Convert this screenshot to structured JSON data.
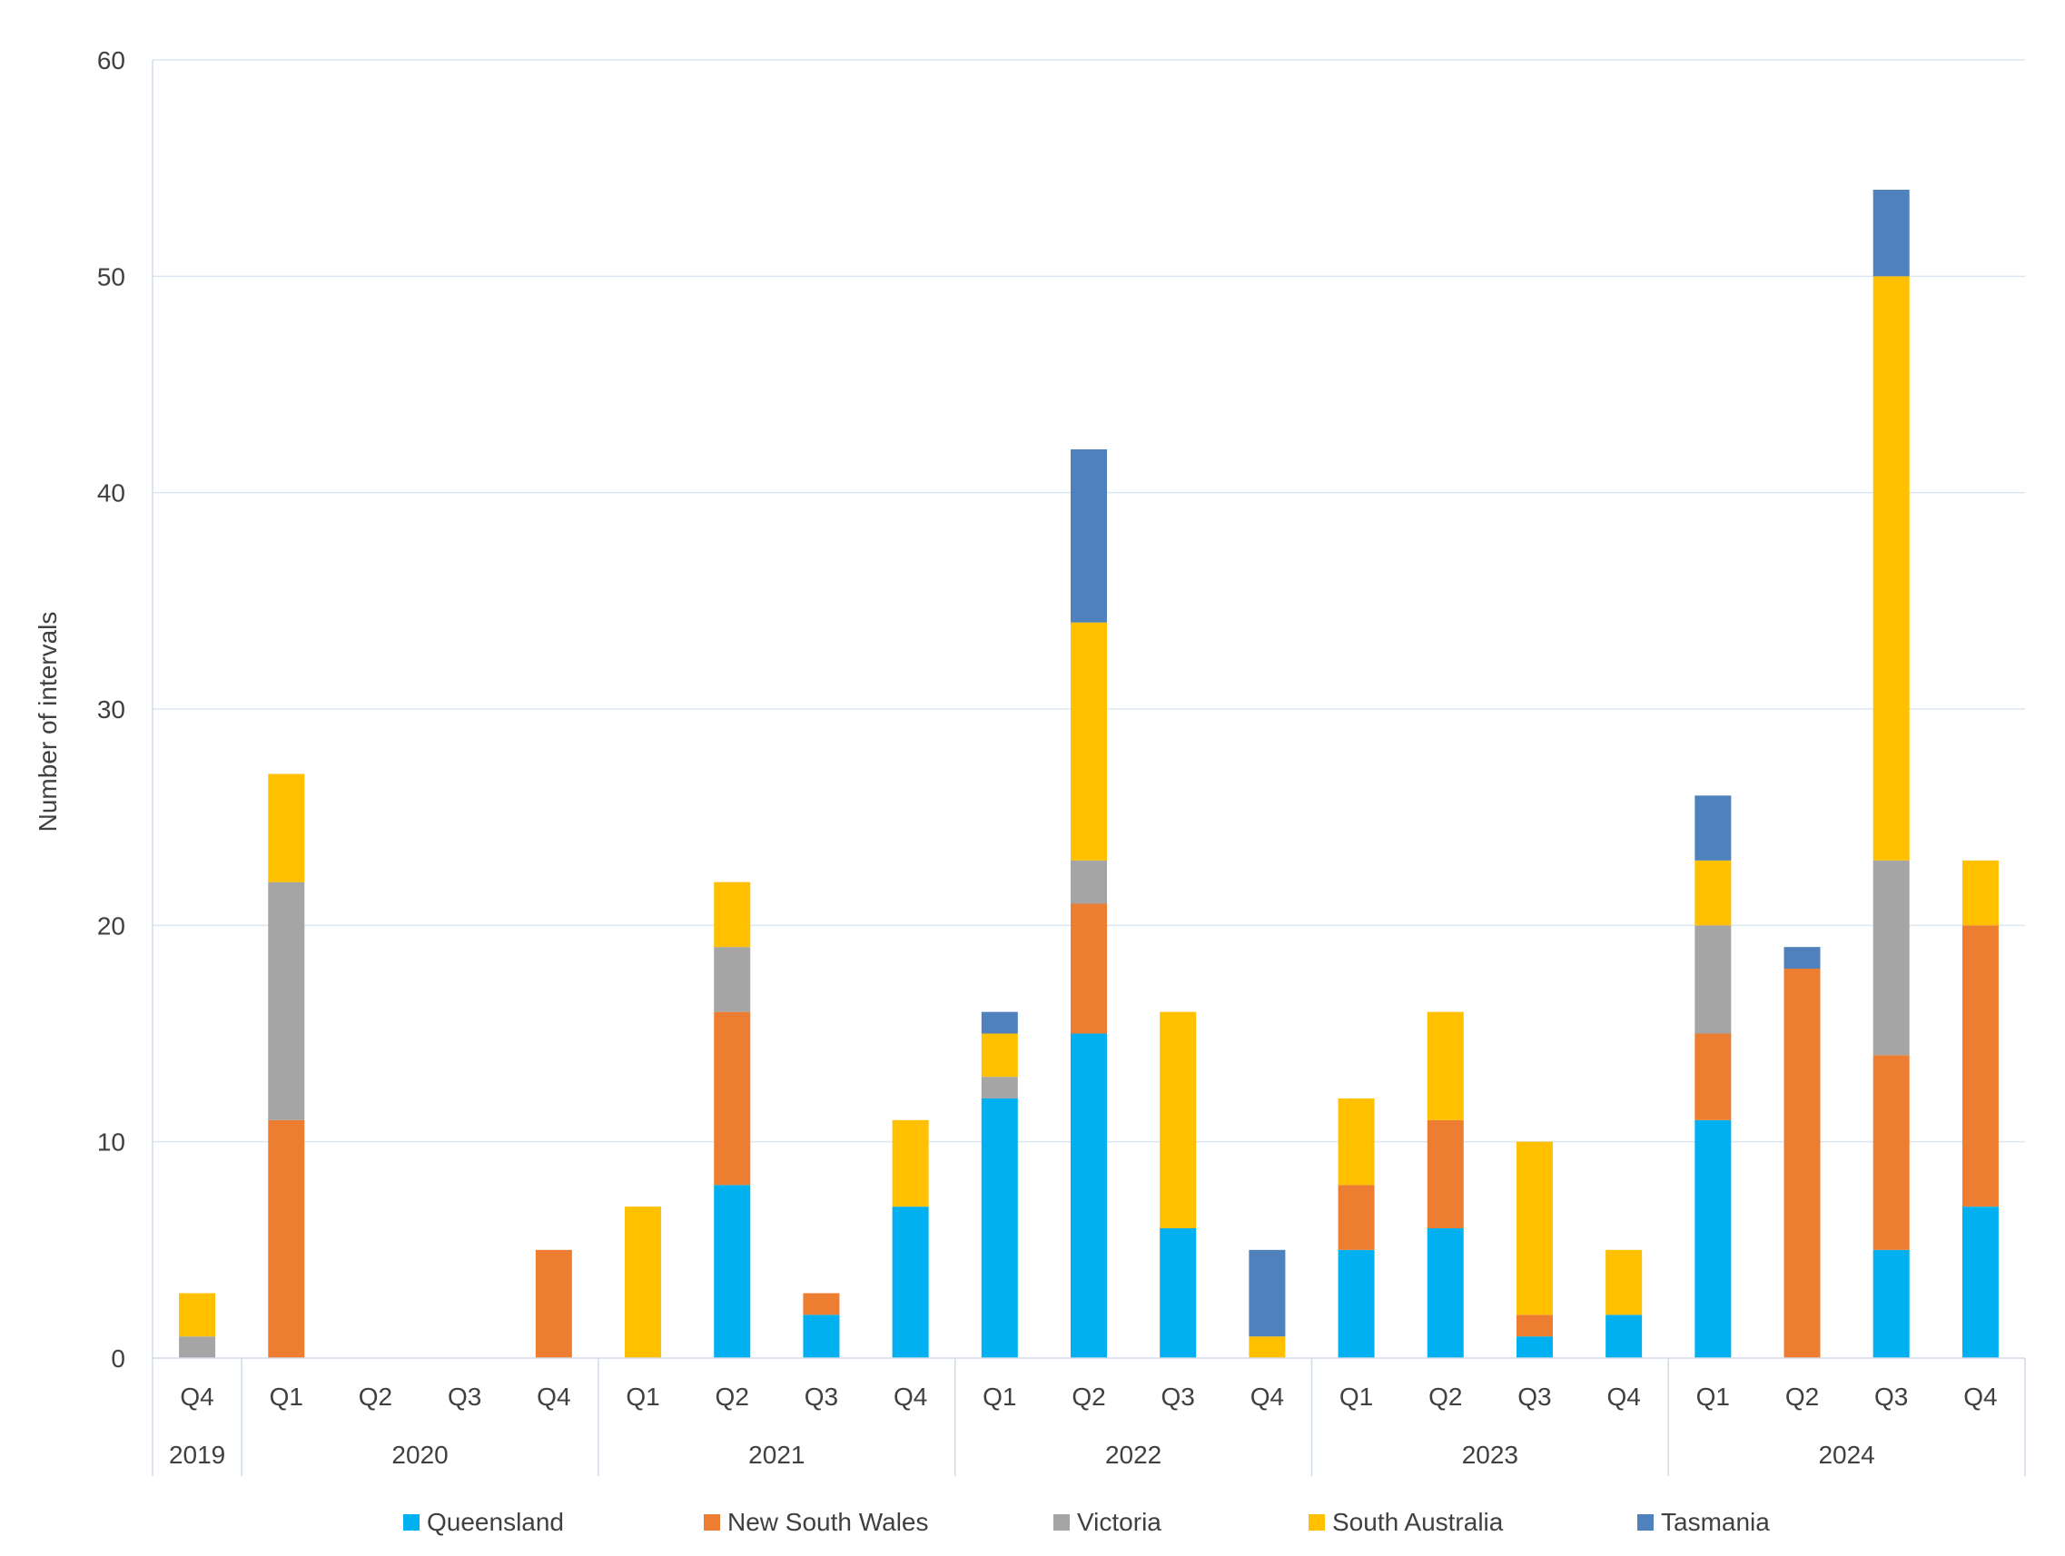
{
  "chart_data": {
    "type": "bar",
    "stacked": true,
    "title": "",
    "xlabel": "",
    "ylabel": "Number of intervals",
    "ylim": [
      0,
      60
    ],
    "yticks": [
      0,
      10,
      20,
      30,
      40,
      50,
      60
    ],
    "grid": true,
    "legend_position": "bottom",
    "categories": [
      "Q4",
      "Q1",
      "Q2",
      "Q3",
      "Q4",
      "Q1",
      "Q2",
      "Q3",
      "Q4",
      "Q1",
      "Q2",
      "Q3",
      "Q4",
      "Q1",
      "Q2",
      "Q3",
      "Q4",
      "Q1",
      "Q2",
      "Q3",
      "Q4"
    ],
    "year_groups": [
      {
        "label": "2019",
        "count": 1
      },
      {
        "label": "2020",
        "count": 4
      },
      {
        "label": "2021",
        "count": 4
      },
      {
        "label": "2022",
        "count": 4
      },
      {
        "label": "2023",
        "count": 4
      },
      {
        "label": "2024",
        "count": 4
      }
    ],
    "series": [
      {
        "name": "Queensland",
        "color": "#00B0F0",
        "values": [
          0,
          0,
          0,
          0,
          0,
          0,
          8,
          2,
          7,
          12,
          15,
          6,
          0,
          5,
          6,
          1,
          2,
          11,
          0,
          5,
          7
        ]
      },
      {
        "name": "New South Wales",
        "color": "#ED7D31",
        "values": [
          0,
          11,
          0,
          0,
          5,
          0,
          8,
          1,
          0,
          0,
          6,
          0,
          0,
          3,
          5,
          1,
          0,
          4,
          18,
          9,
          13
        ]
      },
      {
        "name": "Victoria",
        "color": "#A5A5A5",
        "values": [
          1,
          11,
          0,
          0,
          0,
          0,
          3,
          0,
          0,
          1,
          2,
          0,
          0,
          0,
          0,
          0,
          0,
          5,
          0,
          9,
          0
        ]
      },
      {
        "name": "South Australia",
        "color": "#FFC000",
        "values": [
          2,
          5,
          0,
          0,
          0,
          7,
          3,
          0,
          4,
          2,
          11,
          10,
          1,
          4,
          5,
          8,
          3,
          3,
          0,
          27,
          3
        ]
      },
      {
        "name": "Tasmania",
        "color": "#4F81BD",
        "values": [
          0,
          0,
          0,
          0,
          0,
          0,
          0,
          0,
          0,
          1,
          8,
          0,
          4,
          0,
          0,
          0,
          0,
          3,
          1,
          4,
          0
        ]
      }
    ]
  }
}
